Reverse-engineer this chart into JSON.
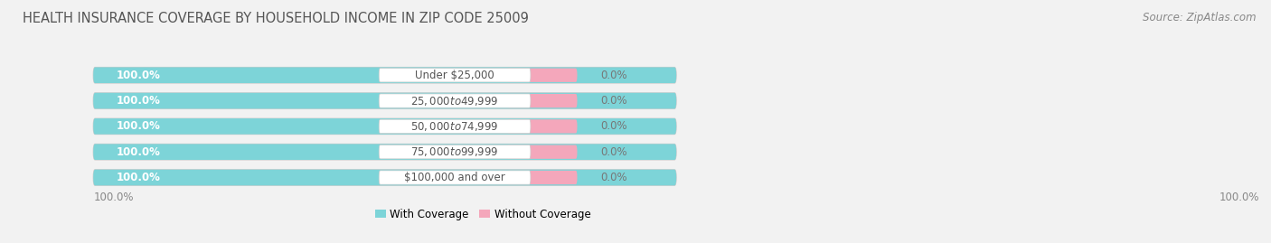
{
  "title": "HEALTH INSURANCE COVERAGE BY HOUSEHOLD INCOME IN ZIP CODE 25009",
  "source": "Source: ZipAtlas.com",
  "categories": [
    "Under $25,000",
    "$25,000 to $49,999",
    "$50,000 to $74,999",
    "$75,000 to $99,999",
    "$100,000 and over"
  ],
  "with_coverage": [
    100.0,
    100.0,
    100.0,
    100.0,
    100.0
  ],
  "without_coverage": [
    0.0,
    0.0,
    0.0,
    0.0,
    0.0
  ],
  "color_with": "#7dd4d8",
  "color_without": "#f4a7bb",
  "bg_color": "#f2f2f2",
  "track_color": "#e0e0e0",
  "legend_with": "With Coverage",
  "legend_without": "Without Coverage",
  "title_fontsize": 10.5,
  "source_fontsize": 8.5,
  "bar_label_fontsize": 8.5,
  "cat_label_fontsize": 8.5,
  "axis_label_fontsize": 8.5
}
